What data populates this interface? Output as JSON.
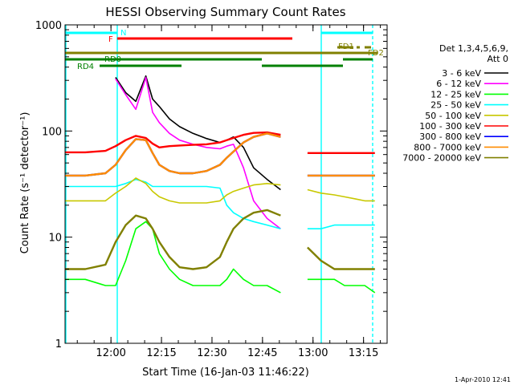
{
  "chart_data": {
    "type": "line",
    "title": "HESSI Observing Summary Count Rates",
    "xlabel": "Start Time (16-Jan-03 11:46:22)",
    "ylabel": "Count Rate (s⁻¹ detector⁻¹)",
    "yscale": "log",
    "ylim": [
      1,
      1000
    ],
    "xlim": [
      "11:46:22",
      "13:22:00"
    ],
    "x_ticks": [
      "12:00",
      "12:15",
      "12:30",
      "12:45",
      "13:00",
      "13:15"
    ],
    "y_ticks": [
      "1",
      "10",
      "100",
      "1000"
    ],
    "grid": false,
    "legend_title": [
      "Det 1,3,4,5,6,9,",
      "Att 0"
    ],
    "legend_position": "right",
    "footer_date": "1-Apr-2010 12:41",
    "x_sample_minutes": [
      0,
      6,
      12,
      15,
      18,
      21,
      24,
      26,
      28,
      31,
      34,
      38,
      42,
      46,
      48,
      50,
      53,
      56,
      60,
      64,
      68,
      72,
      76,
      80,
      83,
      86,
      89,
      92
    ],
    "series": [
      {
        "name": "3 - 6 keV",
        "color": "#000000",
        "values": [
          null,
          null,
          null,
          320,
          230,
          190,
          330,
          200,
          170,
          130,
          110,
          95,
          85,
          78,
          82,
          88,
          70,
          45,
          35,
          28,
          null,
          null,
          null,
          null,
          null,
          null,
          null,
          null
        ]
      },
      {
        "name": "6 - 12 keV",
        "color": "#ff00ff",
        "values": [
          null,
          null,
          null,
          310,
          220,
          160,
          320,
          150,
          120,
          95,
          82,
          75,
          70,
          68,
          72,
          75,
          45,
          22,
          15,
          12,
          null,
          null,
          null,
          null,
          null,
          null,
          null,
          null
        ]
      },
      {
        "name": "12 - 25 keV",
        "color": "#00ff00",
        "values": [
          4,
          4,
          3.5,
          3.5,
          6,
          12,
          14,
          12,
          7,
          5,
          4,
          3.5,
          3.5,
          3.5,
          4,
          5,
          4,
          3.5,
          3.5,
          3,
          null,
          4,
          4,
          4,
          3.5,
          3.5,
          3.5,
          3
        ]
      },
      {
        "name": "25 - 50 keV",
        "color": "#00ffff",
        "values": [
          30,
          30,
          30,
          30,
          32,
          35,
          33,
          30,
          30,
          30,
          30,
          30,
          30,
          29,
          20,
          17,
          15,
          14,
          13,
          12,
          null,
          12,
          12,
          13,
          13,
          13,
          13,
          13
        ]
      },
      {
        "name": "50 - 100 keV",
        "color": "#c8c800",
        "values": [
          22,
          22,
          22,
          26,
          30,
          36,
          32,
          27,
          24,
          22,
          21,
          21,
          21,
          22,
          25,
          27,
          29,
          31,
          32,
          31,
          null,
          28,
          26,
          25,
          24,
          23,
          22,
          22
        ]
      },
      {
        "name": "100 - 300 keV",
        "color": "#ff0000",
        "values": [
          63,
          63,
          65,
          72,
          82,
          90,
          86,
          76,
          70,
          72,
          73,
          74,
          75,
          78,
          82,
          86,
          92,
          96,
          97,
          92,
          null,
          62,
          62,
          62,
          62,
          62,
          62,
          62
        ]
      },
      {
        "name": "300 - 800 keV",
        "color": "#0000ff",
        "values": [
          38,
          38,
          40,
          48,
          66,
          84,
          82,
          62,
          48,
          42,
          40,
          40,
          42,
          48,
          56,
          64,
          78,
          88,
          95,
          88,
          null,
          38,
          38,
          38,
          38,
          38,
          38,
          38
        ]
      },
      {
        "name": "800 - 7000 keV",
        "color": "#ff8c00",
        "values": [
          38,
          38,
          40,
          48,
          66,
          84,
          82,
          62,
          48,
          42,
          40,
          40,
          42,
          48,
          56,
          64,
          78,
          88,
          95,
          88,
          null,
          38,
          38,
          38,
          38,
          38,
          38,
          38
        ]
      },
      {
        "name": "7000 - 20000 keV",
        "color": "#808000",
        "values": [
          5,
          5,
          5.5,
          9,
          13,
          16,
          15,
          12,
          9,
          6.5,
          5.2,
          5,
          5.2,
          6.5,
          9,
          12,
          15,
          17,
          18,
          16,
          null,
          8,
          6,
          5,
          5,
          5,
          5,
          5
        ]
      }
    ],
    "annotations": [
      {
        "label": "N",
        "color": "#00ffff"
      },
      {
        "label": "F",
        "color": "#ff0000"
      },
      {
        "label": "RD0",
        "color": "#008000"
      },
      {
        "label": "RD4",
        "color": "#008000"
      },
      {
        "label": "FD1",
        "color": "#808000"
      },
      {
        "label": "FD2",
        "color": "#808000"
      }
    ]
  }
}
